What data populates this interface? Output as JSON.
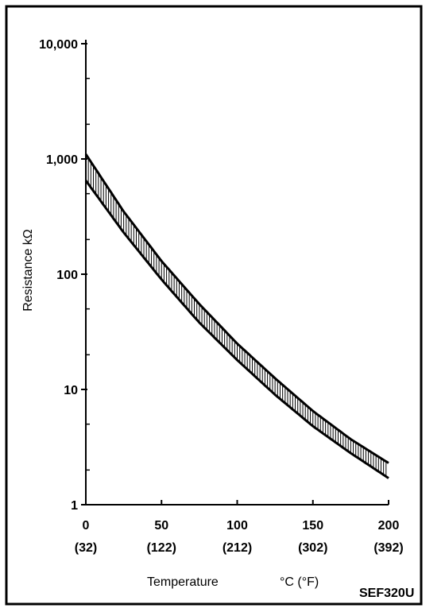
{
  "chart_data": {
    "type": "area",
    "xlabel": "Temperature",
    "xunit": "°C (°F)",
    "ylabel": "Resistance kΩ",
    "figure_code": "SEF320U",
    "yscale": "log",
    "xlim": [
      0,
      200
    ],
    "ylim": [
      1,
      10000
    ],
    "x_ticks": [
      {
        "value": 0,
        "label": "0",
        "sublabel": "(32)"
      },
      {
        "value": 50,
        "label": "50",
        "sublabel": "(122)"
      },
      {
        "value": 100,
        "label": "100",
        "sublabel": "(212)"
      },
      {
        "value": 150,
        "label": "150",
        "sublabel": "(302)"
      },
      {
        "value": 200,
        "label": "200",
        "sublabel": "(392)"
      }
    ],
    "y_ticks": [
      {
        "value": 1,
        "label": "1"
      },
      {
        "value": 10,
        "label": "10"
      },
      {
        "value": 100,
        "label": "100"
      },
      {
        "value": 1000,
        "label": "1,000"
      },
      {
        "value": 10000,
        "label": "10,000"
      }
    ],
    "grid": false,
    "band": {
      "x": [
        0,
        25,
        50,
        75,
        100,
        125,
        150,
        175,
        200
      ],
      "upper": [
        1100,
        350,
        130,
        55,
        25,
        12.5,
        6.5,
        3.7,
        2.3
      ],
      "lower": [
        650,
        230,
        90,
        38,
        18,
        9,
        4.8,
        2.8,
        1.7
      ]
    }
  }
}
